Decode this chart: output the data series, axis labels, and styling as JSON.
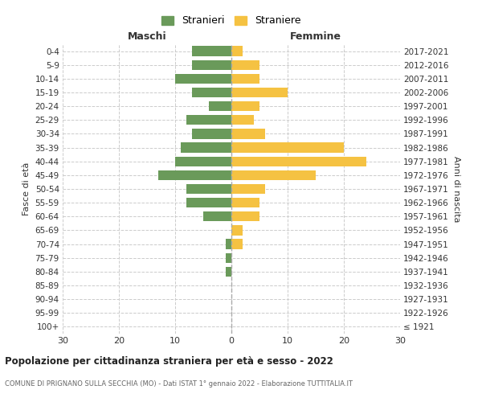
{
  "age_groups": [
    "100+",
    "95-99",
    "90-94",
    "85-89",
    "80-84",
    "75-79",
    "70-74",
    "65-69",
    "60-64",
    "55-59",
    "50-54",
    "45-49",
    "40-44",
    "35-39",
    "30-34",
    "25-29",
    "20-24",
    "15-19",
    "10-14",
    "5-9",
    "0-4"
  ],
  "birth_years": [
    "≤ 1921",
    "1922-1926",
    "1927-1931",
    "1932-1936",
    "1937-1941",
    "1942-1946",
    "1947-1951",
    "1952-1956",
    "1957-1961",
    "1962-1966",
    "1967-1971",
    "1972-1976",
    "1977-1981",
    "1982-1986",
    "1987-1991",
    "1992-1996",
    "1997-2001",
    "2002-2006",
    "2007-2011",
    "2012-2016",
    "2017-2021"
  ],
  "maschi": [
    0,
    0,
    0,
    0,
    1,
    1,
    1,
    0,
    5,
    8,
    8,
    13,
    10,
    9,
    7,
    8,
    4,
    7,
    10,
    7,
    7
  ],
  "femmine": [
    0,
    0,
    0,
    0,
    0,
    0,
    2,
    2,
    5,
    5,
    6,
    15,
    24,
    20,
    6,
    4,
    5,
    10,
    5,
    5,
    2
  ],
  "male_color": "#6a9a5a",
  "female_color": "#f5c242",
  "background_color": "#ffffff",
  "grid_color": "#cccccc",
  "title": "Popolazione per cittadinanza straniera per età e sesso - 2022",
  "subtitle": "COMUNE DI PRIGNANO SULLA SECCHIA (MO) - Dati ISTAT 1° gennaio 2022 - Elaborazione TUTTITALIA.IT",
  "xlabel_left": "Maschi",
  "xlabel_right": "Femmine",
  "ylabel_left": "Fasce di età",
  "ylabel_right": "Anni di nascita",
  "legend_male": "Stranieri",
  "legend_female": "Straniere",
  "xlim": 30
}
